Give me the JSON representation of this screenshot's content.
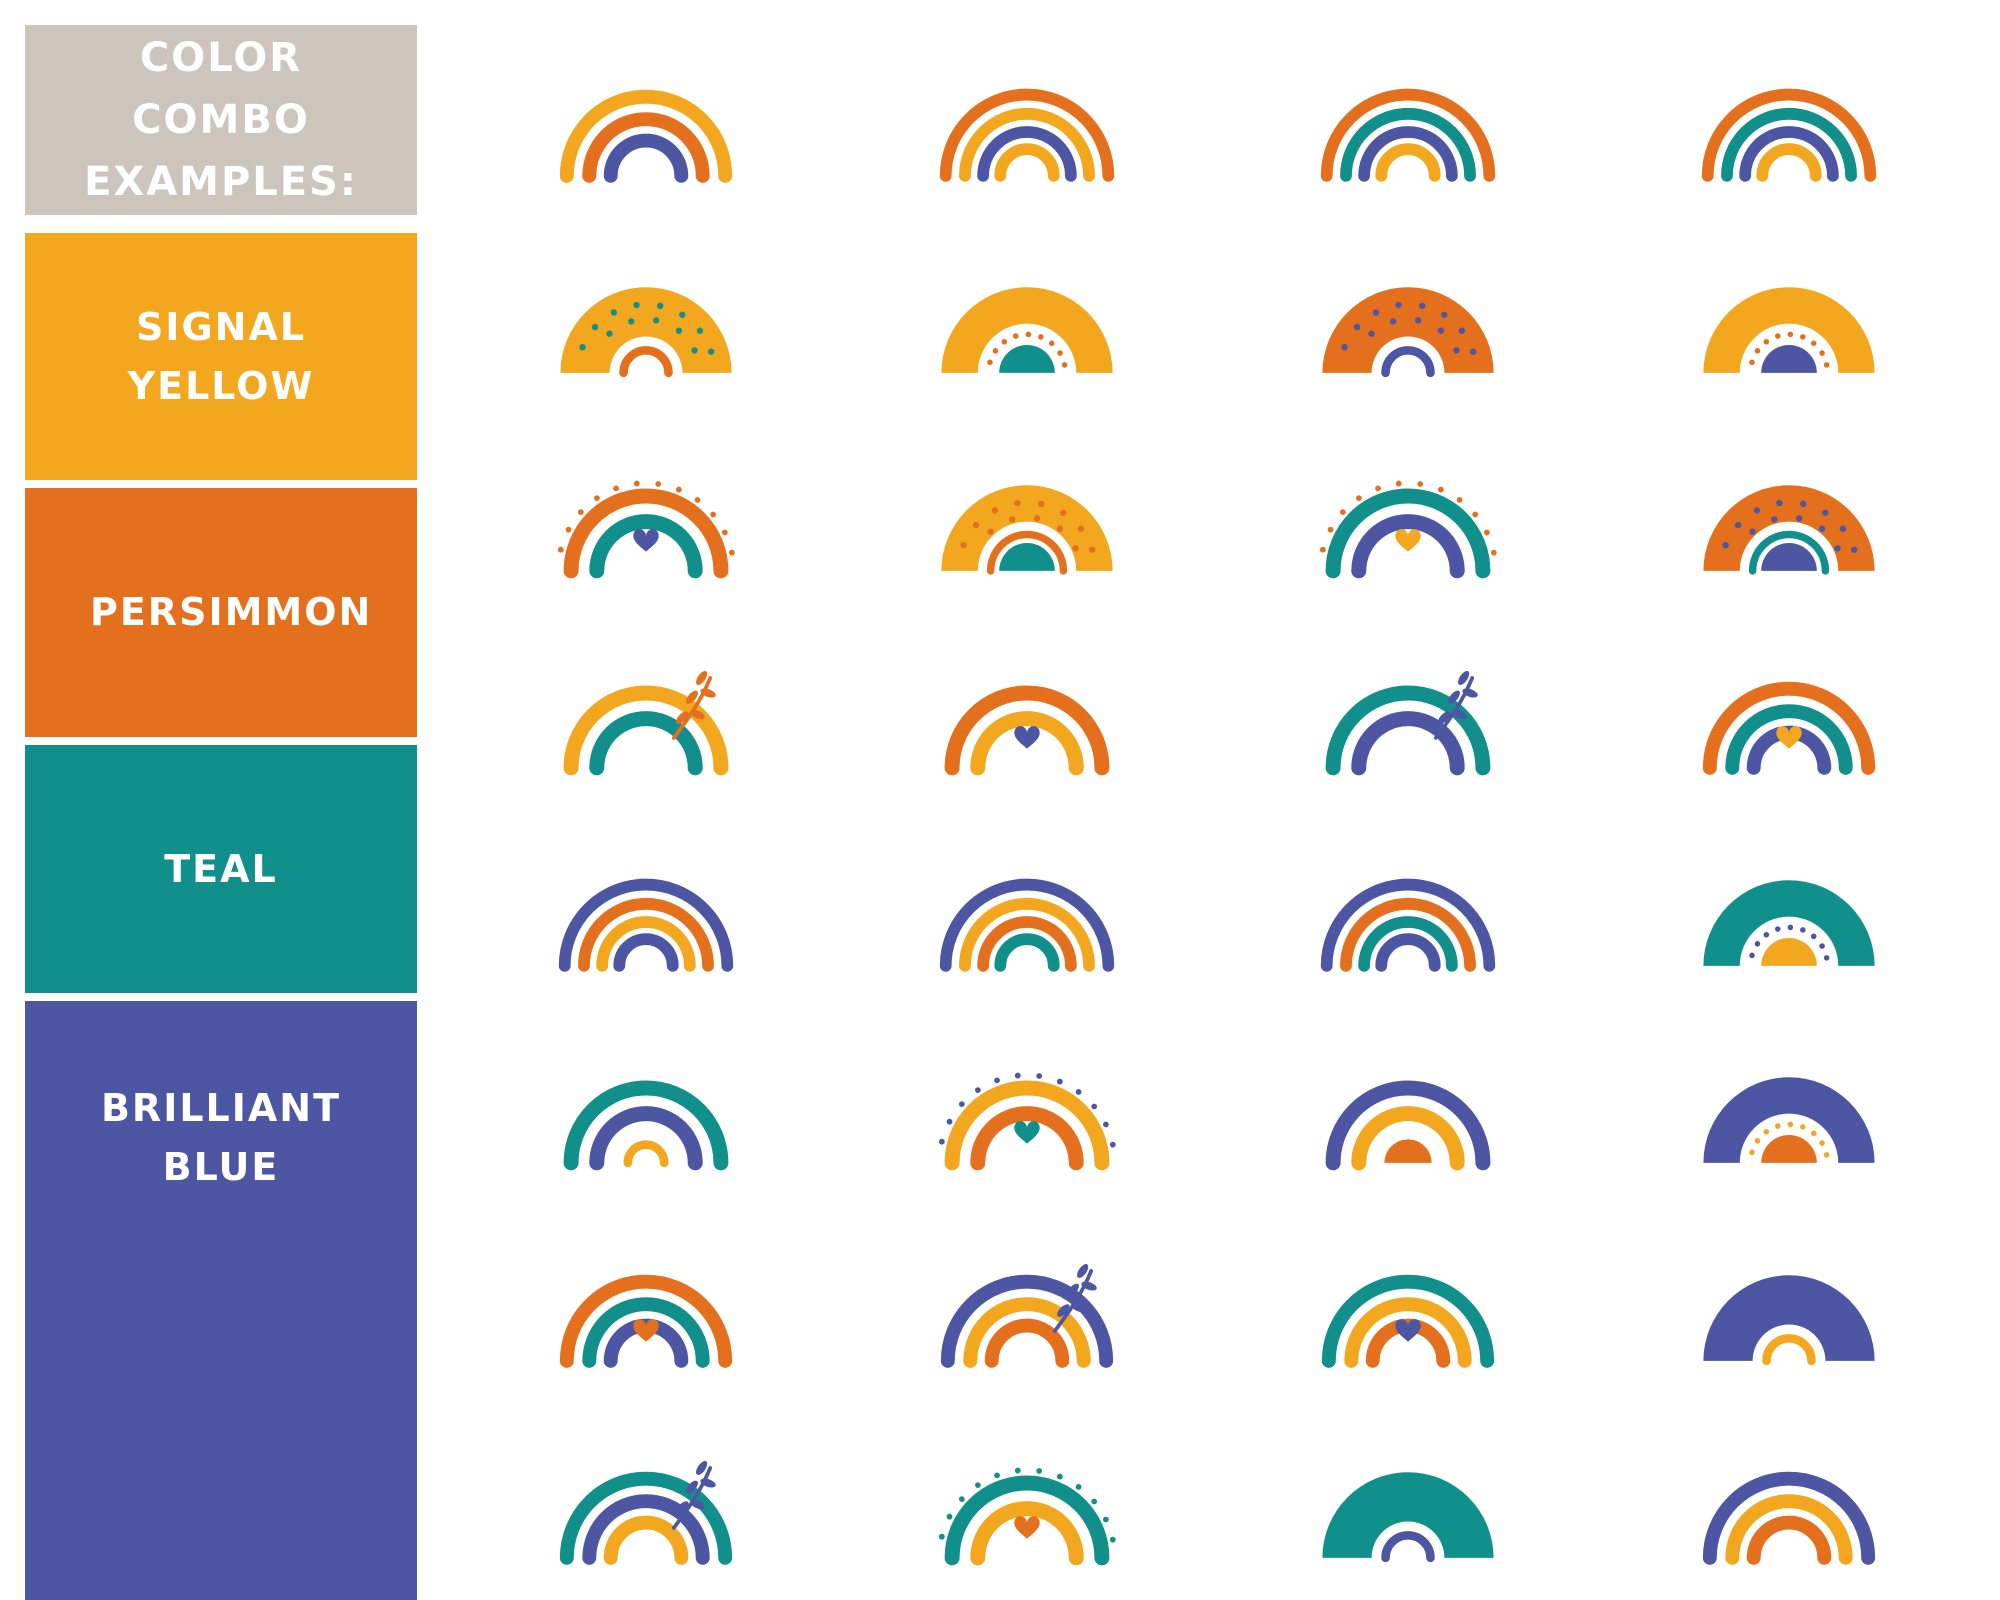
{
  "legend": {
    "title": "COLOR COMBO EXAMPLES:",
    "bg": "#cdc5bc",
    "text_color": "#ffffff"
  },
  "palette": [
    {
      "name": "SIGNAL YELLOW",
      "key": "yellow",
      "hex": "#f2a71e"
    },
    {
      "name": "PERSIMMON",
      "key": "orange",
      "hex": "#e4701e"
    },
    {
      "name": "TEAL",
      "key": "teal",
      "hex": "#11908b"
    },
    {
      "name": "BRILLIANT BLUE",
      "key": "blue",
      "hex": "#4d56a3"
    }
  ],
  "grid": {
    "columns": 4,
    "rows": 8,
    "rainbows": [
      {
        "arcs": [
          "yellow",
          "orange",
          "blue"
        ]
      },
      {
        "arcs": [
          "orange",
          "yellow",
          "blue",
          "yellow"
        ]
      },
      {
        "arcs": [
          "orange",
          "teal",
          "blue",
          "yellow"
        ]
      },
      {
        "arcs": [
          "orange",
          "teal",
          "blue",
          "yellow"
        ]
      },
      {
        "fill": "yellow",
        "dotsOn": "teal",
        "smallArc": "orange"
      },
      {
        "fill": "yellow",
        "gapDots": "orange",
        "bump": "teal"
      },
      {
        "fill": "orange",
        "dotsOn": "blue",
        "smallArc": "blue"
      },
      {
        "fill": "yellow",
        "gapDots": "orange",
        "bump": "blue"
      },
      {
        "arcs": [
          "orange",
          "teal"
        ],
        "heart": "blue",
        "dotsAround": "orange"
      },
      {
        "fill": "yellow",
        "dotsOn": "orange",
        "smallArc": "orange",
        "bump": "teal"
      },
      {
        "arcs": [
          "teal",
          "blue"
        ],
        "heart": "yellow",
        "dotsAround": "orange"
      },
      {
        "fill": "orange",
        "dotsOn": "blue",
        "smallArc": "teal",
        "bump": "blue"
      },
      {
        "arcs": [
          "yellow",
          "teal"
        ],
        "leaf": "orange"
      },
      {
        "arcs": [
          "orange",
          "yellow"
        ],
        "heart": "blue"
      },
      {
        "arcs": [
          "teal",
          "blue"
        ],
        "leaf": "blue"
      },
      {
        "arcs": [
          "orange",
          "teal",
          "blue"
        ],
        "heart": "yellow"
      },
      {
        "arcs": [
          "blue",
          "orange",
          "yellow",
          "blue"
        ]
      },
      {
        "arcs": [
          "blue",
          "yellow",
          "orange",
          "teal"
        ]
      },
      {
        "arcs": [
          "blue",
          "orange",
          "teal",
          "blue"
        ]
      },
      {
        "fill": "teal",
        "gapDots": "blue",
        "bump": "yellow"
      },
      {
        "arcs": [
          "teal",
          "blue"
        ],
        "smallArc": "yellow"
      },
      {
        "arcs": [
          "yellow",
          "orange"
        ],
        "heart": "teal",
        "dotsAround": "blue"
      },
      {
        "arcs": [
          "blue",
          "yellow"
        ],
        "bump": "orange"
      },
      {
        "fill": "blue",
        "gapDots": "yellow",
        "bump": "orange"
      },
      {
        "arcs": [
          "orange",
          "teal",
          "blue"
        ],
        "heart": "orange"
      },
      {
        "arcs": [
          "blue",
          "yellow",
          "orange"
        ],
        "leaf": "blue"
      },
      {
        "arcs": [
          "teal",
          "yellow",
          "orange"
        ],
        "heart": "blue"
      },
      {
        "fill": "blue",
        "smallArc": "yellow"
      },
      {
        "arcs": [
          "teal",
          "blue",
          "yellow"
        ],
        "leaf": "blue"
      },
      {
        "arcs": [
          "teal",
          "yellow"
        ],
        "heart": "orange",
        "dotsAround": "teal"
      },
      {
        "fill": "teal",
        "smallArc": "blue"
      },
      {
        "arcs": [
          "blue",
          "yellow",
          "orange"
        ]
      }
    ]
  }
}
